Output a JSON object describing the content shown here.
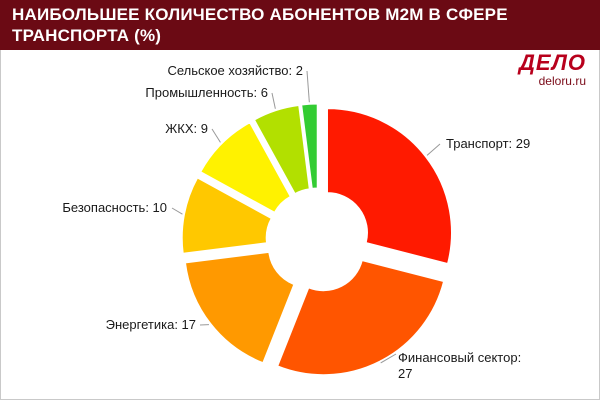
{
  "header": {
    "title": "НАИБОЛЬШЕЕ КОЛИЧЕСТВО АБОНЕНТОВ M2M В СФЕРЕ ТРАНСПОРТА (%)"
  },
  "brand": {
    "logo": "ДЕЛО",
    "url": "deloru.ru"
  },
  "chart_data": {
    "type": "pie",
    "title": "НАИБОЛЬШЕЕ КОЛИЧЕСТВО АБОНЕНТОВ M2M В СФЕРЕ ТРАНСПОРТА (%)",
    "slices": [
      {
        "name": "Транспорт",
        "value": 29,
        "label": "Транспорт: 29",
        "color": "#ff1a00"
      },
      {
        "name": "Финансовый сектор",
        "value": 27,
        "label": "Финансовый сектор: 27",
        "color": "#ff5500"
      },
      {
        "name": "Энергетика",
        "value": 17,
        "label": "Энергетика: 17",
        "color": "#ff9900"
      },
      {
        "name": "Безопасность",
        "value": 10,
        "label": "Безопасность: 10",
        "color": "#ffc800"
      },
      {
        "name": "ЖКХ",
        "value": 9,
        "label": "ЖКХ: 9",
        "color": "#fff200"
      },
      {
        "name": "Промышленность",
        "value": 6,
        "label": "Промышленность: 6",
        "color": "#b2e000"
      },
      {
        "name": "Сельское хозяйство",
        "value": 2,
        "label": "Сельское хозяйство: 2",
        "color": "#33cc33"
      }
    ]
  }
}
